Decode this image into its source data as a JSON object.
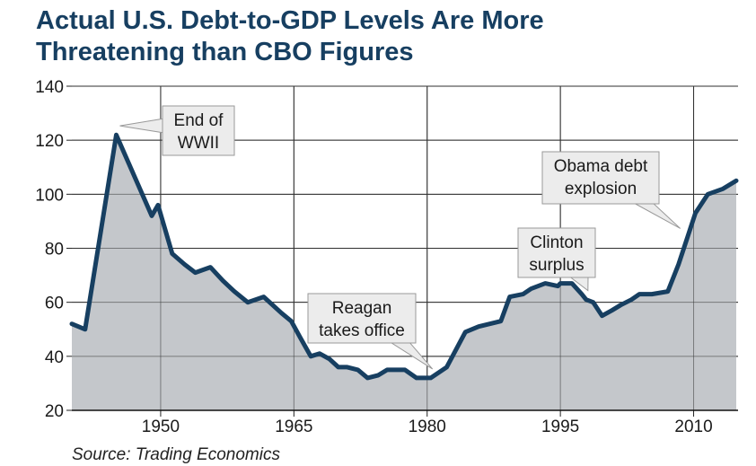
{
  "title_lines": [
    "Actual U.S. Debt-to-GDP Levels Are More",
    "Threatening than CBO Figures"
  ],
  "source": "Source: Trading Economics",
  "chart_data": {
    "type": "area",
    "title": "Actual U.S. Debt-to-GDP Levels Are More Threatening than CBO Figures",
    "xlabel": "",
    "ylabel": "",
    "xlim": [
      1940,
      2015
    ],
    "ylim": [
      20,
      140
    ],
    "x_ticks": [
      1950,
      1965,
      1980,
      1995,
      2010
    ],
    "y_ticks": [
      20,
      40,
      60,
      80,
      100,
      120,
      140
    ],
    "grid": true,
    "line_color": "#173f61",
    "fill_color": "#c4c7cb",
    "x": [
      1940,
      1941.5,
      1945,
      1949,
      1949.7,
      1951.3,
      1952.7,
      1953.9,
      1955.6,
      1957,
      1958.3,
      1959.8,
      1961.6,
      1963.6,
      1964.7,
      1965.7,
      1966.9,
      1967.9,
      1969,
      1970,
      1971,
      1972.2,
      1973.3,
      1974.5,
      1975.5,
      1976.5,
      1977.5,
      1978.8,
      1980.4,
      1982.2,
      1984.3,
      1985.8,
      1988.3,
      1989.3,
      1990.8,
      1991.7,
      1993.3,
      1994.7,
      1995,
      1996.3,
      1997.4,
      1997.9,
      1998.7,
      1999.7,
      2000.8,
      2001.8,
      2003,
      2003.9,
      2005.3,
      2007.1,
      2008.3,
      2009.3,
      2010.2,
      2011.6,
      2013.3,
      2014.8
    ],
    "series": [
      {
        "values": [
          52,
          50,
          122,
          92,
          96,
          78,
          74,
          71,
          73,
          68,
          64,
          60,
          62,
          56,
          53,
          47,
          40,
          41,
          39,
          36,
          36,
          35,
          32,
          33,
          35,
          35,
          35,
          32,
          32,
          36,
          49,
          51,
          53,
          62,
          63,
          65,
          67,
          66,
          67,
          67,
          63,
          61,
          60,
          55,
          57,
          59,
          61,
          63,
          63,
          64,
          74,
          84,
          93,
          100,
          102,
          105
        ]
      }
    ],
    "annotations": [
      {
        "lines": [
          "End of",
          "WWII"
        ],
        "x": 1945,
        "y": 122
      },
      {
        "lines": [
          "Reagan",
          "takes office"
        ],
        "x": 1980.4,
        "y": 32
      },
      {
        "lines": [
          "Clinton",
          "surplus"
        ],
        "x": 1997.9,
        "y": 61
      },
      {
        "lines": [
          "Obama debt",
          "explosion"
        ],
        "x": 2008.3,
        "y": 84
      }
    ]
  }
}
